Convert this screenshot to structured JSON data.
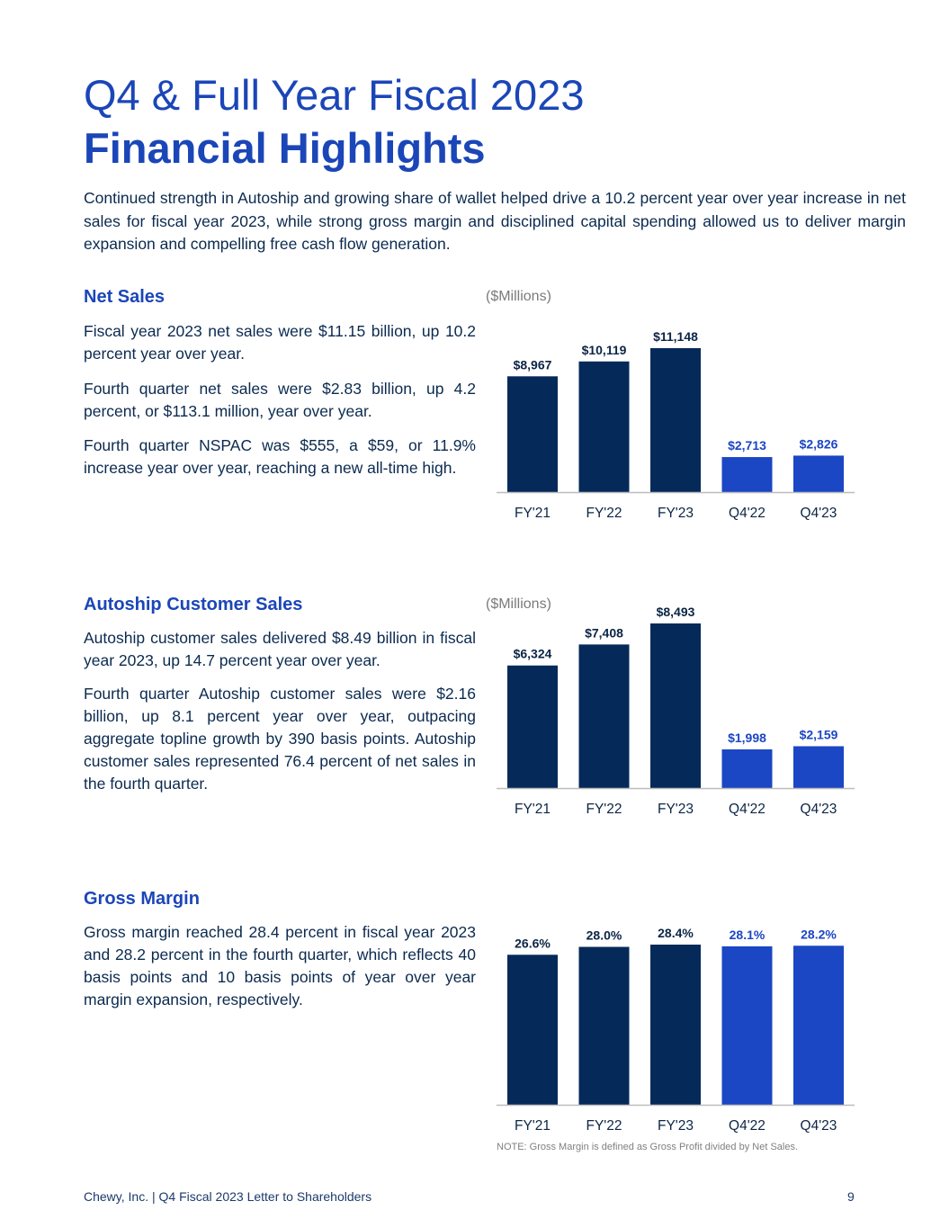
{
  "header": {
    "title_line1": "Q4 & Full Year Fiscal 2023",
    "title_line2": "Financial Highlights",
    "intro": "Continued strength in Autoship and growing share of wallet helped drive a 10.2 percent year over year increase in net sales for fiscal year 2023, while strong gross margin and disciplined capital spending allowed us to deliver margin expansion and compelling free cash flow generation."
  },
  "sections": {
    "net_sales": {
      "heading": "Net Sales",
      "paragraphs": [
        "Fiscal year 2023 net sales were $11.15 billion, up 10.2 percent year over year.",
        "Fourth quarter net sales were $2.83 billion, up 4.2 percent, or $113.1 million, year over year.",
        "Fourth quarter NSPAC was $555, a $59, or 11.9% increase year over year, reaching a new all-time high."
      ],
      "units": "($Millions)"
    },
    "autoship": {
      "heading": "Autoship Customer Sales",
      "paragraphs": [
        "Autoship customer sales delivered $8.49 billion in fiscal year 2023, up 14.7 percent year over year.",
        "Fourth quarter Autoship customer sales were $2.16 billion, up 8.1 percent year over year, outpacing aggregate topline growth by 390 basis points. Autoship customer sales represented 76.4 percent of net sales in the fourth quarter."
      ],
      "units": "($Millions)"
    },
    "gross_margin": {
      "heading": "Gross Margin",
      "paragraphs": [
        "Gross margin reached 28.4 percent in fiscal year 2023 and  28.2 percent in the fourth quarter, which reflects 40 basis points and 10 basis points of year over year margin expansion, respectively."
      ],
      "note": "NOTE: Gross Margin is defined as Gross Profit divided by Net Sales."
    }
  },
  "colors": {
    "fy_bar": "#052a59",
    "quarter_bar": "#1b46c4",
    "fy_label": "#0b2545",
    "quarter_label": "#1b46c4",
    "axis": "#bdbdbd"
  },
  "chart_data": [
    {
      "type": "bar",
      "categories": [
        "FY'21",
        "FY'22",
        "FY'23",
        "Q4'22",
        "Q4'23"
      ],
      "values": [
        8967,
        10119,
        11148,
        2713,
        2826
      ],
      "data_labels": [
        "$8,967",
        "$10,119",
        "$11,148",
        "$2,713",
        "$2,826"
      ],
      "ylabel": "($Millions)"
    },
    {
      "type": "bar",
      "categories": [
        "FY'21",
        "FY'22",
        "FY'23",
        "Q4'22",
        "Q4'23"
      ],
      "values": [
        6324,
        7408,
        8493,
        1998,
        2159
      ],
      "data_labels": [
        "$6,324",
        "$7,408",
        "$8,493",
        "$1,998",
        "$2,159"
      ],
      "ylabel": "($Millions)"
    },
    {
      "type": "bar",
      "categories": [
        "FY'21",
        "FY'22",
        "FY'23",
        "Q4'22",
        "Q4'23"
      ],
      "values": [
        26.6,
        28.0,
        28.4,
        28.1,
        28.2
      ],
      "data_labels": [
        "26.6%",
        "28.0%",
        "28.4%",
        "28.1%",
        "28.2%"
      ]
    }
  ],
  "footer": {
    "left": "Chewy, Inc. | Q4 Fiscal 2023 Letter to Shareholders",
    "page": "9"
  }
}
